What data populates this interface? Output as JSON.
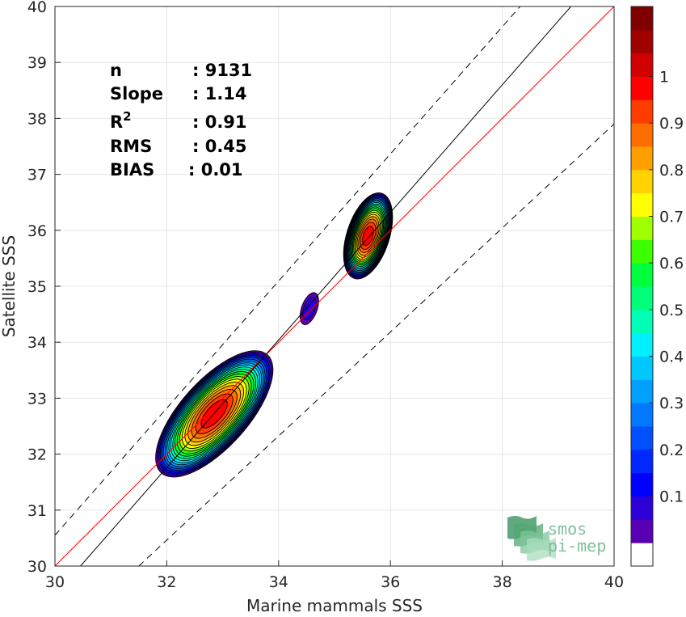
{
  "chart_data": {
    "type": "contour",
    "xlabel": "Marine mammals SSS",
    "ylabel": "Satellite SSS",
    "xlim": [
      30,
      40
    ],
    "ylim": [
      30,
      40
    ],
    "xticks": [
      "30",
      "32",
      "34",
      "36",
      "38",
      "40"
    ],
    "yticks": [
      "30",
      "31",
      "32",
      "33",
      "34",
      "35",
      "36",
      "37",
      "38",
      "39",
      "40"
    ],
    "grid": true,
    "stats": [
      {
        "label": "n",
        "sep": ": 9131"
      },
      {
        "label": "Slope",
        "sep": ": 1.14"
      },
      {
        "label": "R",
        "sup": "2",
        "sep": ": 0.91"
      },
      {
        "label": "RMS",
        "sep": ": 0.45"
      },
      {
        "label": "BIAS",
        "sep": ": 0.01"
      }
    ],
    "lines": [
      {
        "name": "identity",
        "color": "#ff0000",
        "style": "solid",
        "points": [
          [
            30,
            30
          ],
          [
            40,
            40
          ]
        ]
      },
      {
        "name": "regression",
        "color": "#000000",
        "style": "solid",
        "slope": 1.14,
        "intercept": -4.72
      },
      {
        "name": "upper-bound",
        "color": "#000000",
        "style": "dashed",
        "points": [
          [
            30,
            30.55
          ],
          [
            38.32,
            40
          ]
        ]
      },
      {
        "name": "lower-bound",
        "color": "#000000",
        "style": "dashed",
        "points": [
          [
            31.5,
            30
          ],
          [
            40,
            37.9
          ]
        ]
      }
    ],
    "clusters": [
      {
        "name": "main",
        "cx": 32.85,
        "cy": 32.72,
        "angle_deg": 48,
        "outer_rx": 1.42,
        "outer_ry": 0.6,
        "peak": 1.0
      },
      {
        "name": "upper",
        "cx": 35.6,
        "cy": 35.9,
        "angle_deg": 72,
        "outer_rx": 0.8,
        "outer_ry": 0.38,
        "peak": 1.0
      },
      {
        "name": "small",
        "cx": 34.55,
        "cy": 34.6,
        "angle_deg": 70,
        "outer_rx": 0.3,
        "outer_ry": 0.14,
        "peak": 0.1
      }
    ],
    "colorbar": {
      "ticks": [
        "0.1",
        "0.2",
        "0.3",
        "0.4",
        "0.5",
        "0.6",
        "0.7",
        "0.8",
        "0.9",
        "1"
      ],
      "levels": [
        0,
        0.05,
        0.1,
        0.15,
        0.2,
        0.25,
        0.3,
        0.35,
        0.4,
        0.45,
        0.5,
        0.55,
        0.6,
        0.65,
        0.7,
        0.75,
        0.8,
        0.85,
        0.9,
        0.95,
        1.0
      ],
      "colors": [
        "#ffffff",
        "#5a00b4",
        "#2d00d8",
        "#0000ff",
        "#0028ff",
        "#0050ff",
        "#0078ff",
        "#00a0ff",
        "#00c8ff",
        "#00f0ff",
        "#00ffb4",
        "#00ff78",
        "#00ff3c",
        "#3cff00",
        "#a0ff00",
        "#ffff00",
        "#ffd200",
        "#ffa000",
        "#ff6e00",
        "#ff3c00",
        "#ff0000",
        "#d20000",
        "#a00000",
        "#800000"
      ]
    },
    "logo": [
      "smos",
      "pi-mep"
    ]
  }
}
